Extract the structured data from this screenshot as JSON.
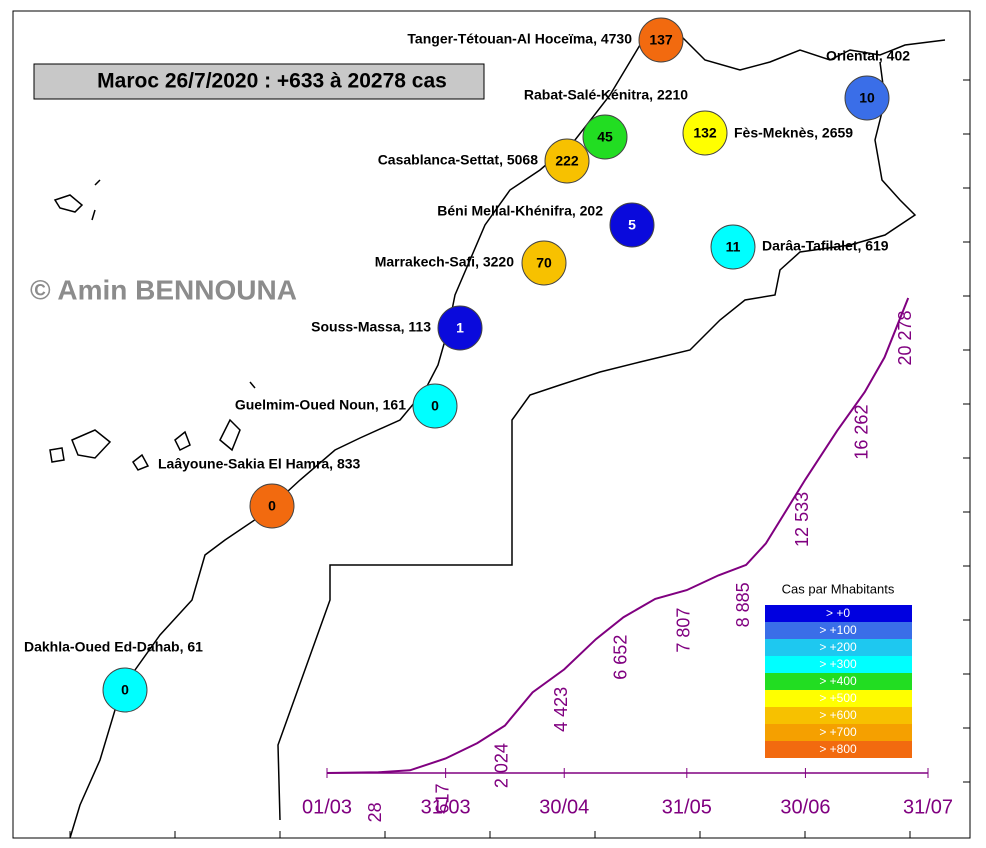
{
  "title": "Maroc 26/7/2020 : +633 à 20278 cas",
  "watermark": "© Amin BENNOUNA",
  "regions": [
    {
      "label": "Tanger-Tétouan-Al Hoceïma, 4730",
      "value": 137,
      "color": "#f26a0f"
    },
    {
      "label": "Oriental, 402",
      "value": 10,
      "color": "#3a6ee8"
    },
    {
      "label": "Rabat-Salé-Kénitra, 2210",
      "value": 45,
      "color": "#22dd22"
    },
    {
      "label": "Fès-Meknès, 2659",
      "value": 132,
      "color": "#ffff00"
    },
    {
      "label": "Casablanca-Settat, 5068",
      "value": 222,
      "color": "#f7c100"
    },
    {
      "label": "Béni Mellal-Khénifra, 202",
      "value": 5,
      "color": "#0a0adc"
    },
    {
      "label": "Darâa-Tafilalet, 619",
      "value": 11,
      "color": "#00ffff"
    },
    {
      "label": "Marrakech-Safi, 3220",
      "value": 70,
      "color": "#f7c100"
    },
    {
      "label": "Souss-Massa, 113",
      "value": 1,
      "color": "#0a0adc"
    },
    {
      "label": "Guelmim-Oued Noun, 161",
      "value": 0,
      "color": "#00ffff"
    },
    {
      "label": "Laâyoune-Sakia El Hamra, 833",
      "value": 0,
      "color": "#f26a0f"
    },
    {
      "label": "Dakhla-Oued Ed-Dahab, 61",
      "value": 0,
      "color": "#00ffff"
    }
  ],
  "legend": {
    "title": "Cas par Mhabitants",
    "items": [
      {
        "label": "> +0",
        "color": "#0000e0"
      },
      {
        "label": "> +100",
        "color": "#3a6ee8"
      },
      {
        "label": "> +200",
        "color": "#1ec8f0"
      },
      {
        "label": "> +300",
        "color": "#00ffff"
      },
      {
        "label": "> +400",
        "color": "#22dd22"
      },
      {
        "label": "> +500",
        "color": "#ffff00"
      },
      {
        "label": "> +600",
        "color": "#f7c100"
      },
      {
        "label": "> +700",
        "color": "#f5a000"
      },
      {
        "label": "> +800",
        "color": "#f26a0f"
      }
    ]
  },
  "chart_data": {
    "type": "line",
    "color": "#800080",
    "x": [
      "01/03",
      "14/03",
      "22/03",
      "31/03",
      "08/04",
      "15/04",
      "22/04",
      "30/04",
      "08/05",
      "15/05",
      "23/05",
      "31/05",
      "08/06",
      "15/06",
      "20/06",
      "30/06",
      "08/07",
      "15/07",
      "20/07",
      "26/07"
    ],
    "values": [
      0,
      28,
      115,
      617,
      1275,
      2024,
      3446,
      4423,
      5711,
      6652,
      7433,
      7807,
      8437,
      8885,
      9801,
      12533,
      14607,
      16262,
      17742,
      20278
    ],
    "value_labels": [
      null,
      "28",
      null,
      "617",
      null,
      "2 024",
      null,
      "4 423",
      null,
      "6 652",
      null,
      "7 807",
      null,
      "8 885",
      null,
      "12 533",
      null,
      "16 262",
      null,
      "20 278"
    ],
    "xlim": [
      "01/03",
      "31/07"
    ],
    "xticks": [
      "01/03",
      "31/03",
      "30/04",
      "31/05",
      "30/06",
      "31/07"
    ]
  }
}
